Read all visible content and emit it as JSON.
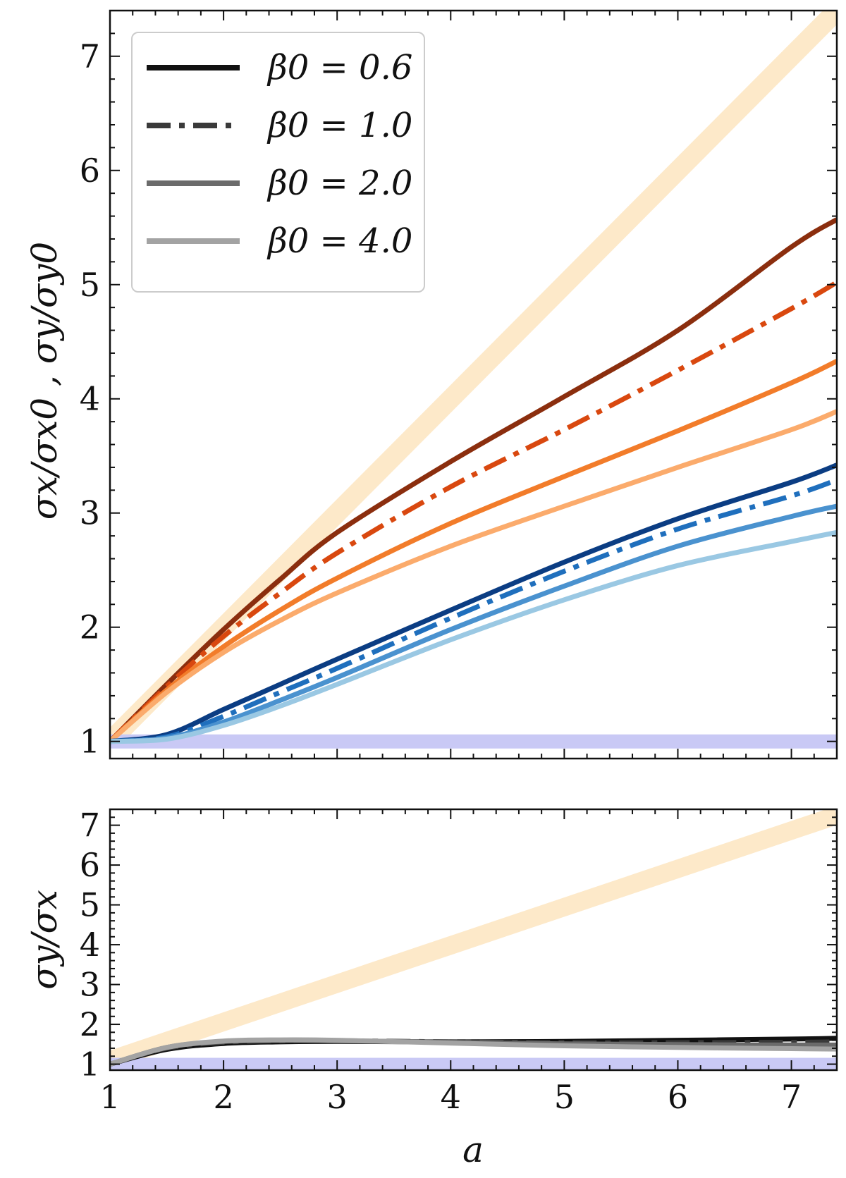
{
  "chart_data": [
    {
      "type": "line",
      "panel": "top",
      "title": "",
      "xlabel": "",
      "ylabel": "σx/σx0 , σy/σy0",
      "xlim": [
        1,
        7.4
      ],
      "ylim": [
        0.85,
        7.4
      ],
      "xticks": [
        "1",
        "2",
        "3",
        "4",
        "5",
        "6",
        "7"
      ],
      "yticks": [
        "1",
        "2",
        "3",
        "4",
        "5",
        "6",
        "7"
      ],
      "legend": {
        "location": "top-left",
        "entries": [
          {
            "label": "β0 = 0.6",
            "color": "#111111",
            "style": "solid"
          },
          {
            "label": "β0 = 1.0",
            "color": "#3a3a3a",
            "style": "dashdot"
          },
          {
            "label": "β0 = 2.0",
            "color": "#6b6b6b",
            "style": "solid"
          },
          {
            "label": "β0 = 4.0",
            "color": "#a3a3a3",
            "style": "solid"
          }
        ]
      },
      "bands": [
        {
          "name": "reference-linear",
          "color": "#fde9c9",
          "x": [
            1,
            7.4
          ],
          "y": [
            1,
            7.4
          ]
        },
        {
          "name": "reference-constant",
          "color": "#c9c9f5",
          "x": [
            1,
            7.4
          ],
          "y": [
            1,
            1
          ]
        }
      ],
      "series": [
        {
          "name": "sigma-y β0=0.6",
          "color": "#8b2e0e",
          "style": "solid",
          "x": [
            1,
            1.5,
            2,
            2.5,
            3,
            4,
            5,
            6,
            7,
            7.4
          ],
          "y": [
            1,
            1.5,
            1.98,
            2.42,
            2.83,
            3.45,
            4.02,
            4.6,
            5.33,
            5.57
          ]
        },
        {
          "name": "sigma-y β0=1.0",
          "color": "#d9480f",
          "style": "dashdot",
          "x": [
            1,
            1.5,
            2,
            2.5,
            3,
            4,
            5,
            6,
            7,
            7.4
          ],
          "y": [
            1,
            1.48,
            1.92,
            2.3,
            2.65,
            3.23,
            3.73,
            4.25,
            4.79,
            5.02
          ]
        },
        {
          "name": "sigma-y β0=2.0",
          "color": "#f27c2a",
          "style": "solid",
          "x": [
            1,
            1.5,
            2,
            2.5,
            3,
            4,
            5,
            6,
            7,
            7.4
          ],
          "y": [
            1,
            1.45,
            1.83,
            2.15,
            2.43,
            2.91,
            3.32,
            3.72,
            4.14,
            4.33
          ]
        },
        {
          "name": "sigma-y β0=4.0",
          "color": "#fbab6c",
          "style": "solid",
          "x": [
            1,
            1.5,
            2,
            2.5,
            3,
            4,
            5,
            6,
            7,
            7.4
          ],
          "y": [
            1,
            1.43,
            1.78,
            2.06,
            2.3,
            2.71,
            3.06,
            3.4,
            3.73,
            3.89
          ]
        },
        {
          "name": "sigma-x β0=0.6",
          "color": "#0b3d83",
          "style": "solid",
          "x": [
            1,
            1.5,
            2,
            2.5,
            3,
            4,
            5,
            6,
            7,
            7.4
          ],
          "y": [
            1,
            1.06,
            1.28,
            1.5,
            1.72,
            2.15,
            2.57,
            2.95,
            3.27,
            3.42
          ]
        },
        {
          "name": "sigma-x β0=1.0",
          "color": "#1f6fbd",
          "style": "dashdot",
          "x": [
            1,
            1.5,
            2,
            2.5,
            3,
            4,
            5,
            6,
            7,
            7.4
          ],
          "y": [
            1,
            1.04,
            1.22,
            1.43,
            1.64,
            2.08,
            2.49,
            2.86,
            3.15,
            3.29
          ]
        },
        {
          "name": "sigma-x β0=2.0",
          "color": "#4a92cf",
          "style": "solid",
          "x": [
            1,
            1.5,
            2,
            2.5,
            3,
            4,
            5,
            6,
            7,
            7.4
          ],
          "y": [
            1,
            1.03,
            1.17,
            1.36,
            1.56,
            1.98,
            2.36,
            2.71,
            2.97,
            3.06
          ]
        },
        {
          "name": "sigma-x β0=4.0",
          "color": "#9ac8e3",
          "style": "solid",
          "x": [
            1,
            1.5,
            2,
            2.5,
            3,
            4,
            5,
            6,
            7,
            7.4
          ],
          "y": [
            1,
            1.02,
            1.14,
            1.31,
            1.5,
            1.89,
            2.24,
            2.54,
            2.75,
            2.83
          ]
        }
      ]
    },
    {
      "type": "line",
      "panel": "bottom",
      "title": "",
      "xlabel": "a",
      "ylabel": "σy/σx",
      "xlim": [
        1,
        7.4
      ],
      "ylim": [
        0.85,
        7.4
      ],
      "xticks": [
        "1",
        "2",
        "3",
        "4",
        "5",
        "6",
        "7"
      ],
      "yticks": [
        "1",
        "2",
        "3",
        "4",
        "5",
        "6",
        "7"
      ],
      "bands": [
        {
          "name": "reference-linear",
          "color": "#fde9c9",
          "x": [
            1,
            7.4
          ],
          "y": [
            1.1,
            7.25
          ]
        },
        {
          "name": "reference-constant",
          "color": "#c9c9f5",
          "x": [
            1,
            7.4
          ],
          "y": [
            1,
            1
          ]
        }
      ],
      "series": [
        {
          "name": "ratio β0=0.6",
          "color": "#111111",
          "style": "solid",
          "x": [
            1,
            1.5,
            2,
            2.5,
            3,
            4,
            5,
            6,
            7,
            7.4
          ],
          "y": [
            1,
            1.37,
            1.52,
            1.56,
            1.57,
            1.56,
            1.57,
            1.6,
            1.63,
            1.65
          ]
        },
        {
          "name": "ratio β0=1.0",
          "color": "#3a3a3a",
          "style": "dashdot",
          "x": [
            1,
            1.5,
            2,
            2.5,
            3,
            4,
            5,
            6,
            7,
            7.4
          ],
          "y": [
            1,
            1.4,
            1.55,
            1.59,
            1.59,
            1.56,
            1.54,
            1.54,
            1.55,
            1.56
          ]
        },
        {
          "name": "ratio β0=2.0",
          "color": "#6b6b6b",
          "style": "solid",
          "x": [
            1,
            1.5,
            2,
            2.5,
            3,
            4,
            5,
            6,
            7,
            7.4
          ],
          "y": [
            1,
            1.42,
            1.57,
            1.6,
            1.59,
            1.55,
            1.51,
            1.49,
            1.48,
            1.48
          ]
        },
        {
          "name": "ratio β0=4.0",
          "color": "#a3a3a3",
          "style": "solid",
          "x": [
            1,
            1.5,
            2,
            2.5,
            3,
            4,
            5,
            6,
            7,
            7.4
          ],
          "y": [
            1,
            1.42,
            1.58,
            1.61,
            1.6,
            1.53,
            1.46,
            1.42,
            1.39,
            1.38
          ]
        }
      ]
    }
  ]
}
